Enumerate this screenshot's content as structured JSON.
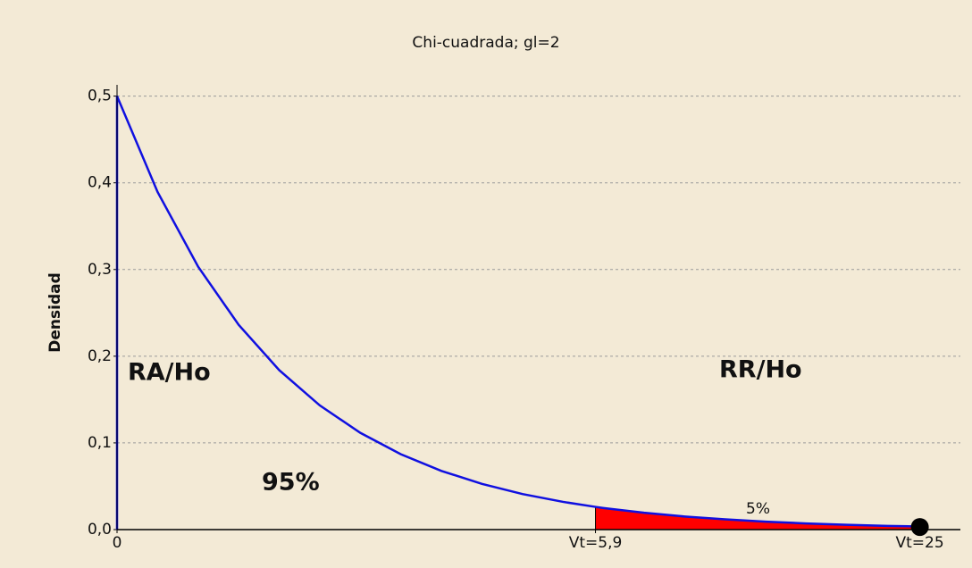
{
  "chart_data": {
    "type": "area_curve",
    "title": "Chi-cuadrada; gl=2",
    "y_label": "Densidad",
    "x": [
      0,
      0.5,
      1,
      1.5,
      2,
      2.5,
      3,
      3.5,
      4,
      4.5,
      5,
      5.5,
      5.9,
      6,
      6.5,
      7,
      7.5,
      8,
      8.5,
      9,
      9.5,
      10
    ],
    "series": [
      {
        "name": "Densidad",
        "color": "#1010e0",
        "values": [
          0.5,
          0.3894,
          0.3033,
          0.2362,
          0.1839,
          0.1433,
          0.1116,
          0.0869,
          0.0677,
          0.0527,
          0.041,
          0.032,
          0.0262,
          0.0249,
          0.0194,
          0.0151,
          0.0118,
          0.0092,
          0.0071,
          0.0056,
          0.0043,
          0.0034
        ]
      }
    ],
    "shade_start": 5.9,
    "shade_color": "#ff0000",
    "point": {
      "x": 9.9,
      "y": 0.003
    },
    "xlim": [
      0,
      10.4
    ],
    "ylim": [
      0,
      0.513
    ],
    "xticks": [
      {
        "value": 0,
        "label": "0"
      },
      {
        "value": 5.9,
        "label": "Vt=5,9"
      },
      {
        "value": 9.9,
        "label": "Vt=25"
      }
    ],
    "yticks": [
      {
        "value": 0,
        "label": "0,0"
      },
      {
        "value": 0.1,
        "label": "0,1"
      },
      {
        "value": 0.2,
        "label": "0,2"
      },
      {
        "value": 0.3,
        "label": "0,3"
      },
      {
        "value": 0.4,
        "label": "0,4"
      },
      {
        "value": 0.5,
        "label": "0,5"
      }
    ],
    "grid": true,
    "annotations": [
      "RA/Ho",
      "RR/Ho",
      "95%",
      "5%"
    ]
  }
}
